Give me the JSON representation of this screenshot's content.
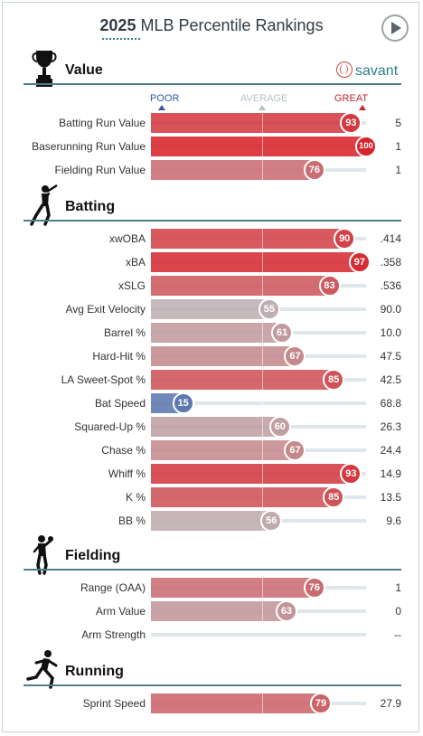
{
  "header": {
    "year": "2025",
    "title": "MLB Percentile Rankings",
    "play_icon": "play-icon"
  },
  "brand": {
    "label": "savant",
    "icon": "baseball-icon"
  },
  "scale": {
    "poor": "POOR",
    "average": "AVERAGE",
    "great": "GREAT"
  },
  "colors": {
    "accent": "#2e7d8c",
    "great": "#d8232a",
    "poor": "#325aa8",
    "average": "#b9bbbc"
  },
  "sections": {
    "value": {
      "title": "Value",
      "icon": "trophy-icon",
      "rows": [
        {
          "label": "Batting Run Value",
          "pct": 93,
          "value": "5"
        },
        {
          "label": "Baserunning Run Value",
          "pct": 100,
          "value": "1"
        },
        {
          "label": "Fielding Run Value",
          "pct": 76,
          "value": "1"
        }
      ]
    },
    "batting": {
      "title": "Batting",
      "icon": "batter-icon",
      "rows": [
        {
          "label": "xwOBA",
          "pct": 90,
          "value": ".414"
        },
        {
          "label": "xBA",
          "pct": 97,
          "value": ".358"
        },
        {
          "label": "xSLG",
          "pct": 83,
          "value": ".536"
        },
        {
          "label": "Avg Exit Velocity",
          "pct": 55,
          "value": "90.0"
        },
        {
          "label": "Barrel %",
          "pct": 61,
          "value": "10.0"
        },
        {
          "label": "Hard-Hit %",
          "pct": 67,
          "value": "47.5"
        },
        {
          "label": "LA Sweet-Spot %",
          "pct": 85,
          "value": "42.5"
        },
        {
          "label": "Bat Speed",
          "pct": 15,
          "value": "68.8"
        },
        {
          "label": "Squared-Up %",
          "pct": 60,
          "value": "26.3"
        },
        {
          "label": "Chase %",
          "pct": 67,
          "value": "24.4"
        },
        {
          "label": "Whiff %",
          "pct": 93,
          "value": "14.9"
        },
        {
          "label": "K %",
          "pct": 85,
          "value": "13.5"
        },
        {
          "label": "BB %",
          "pct": 56,
          "value": "9.6"
        }
      ]
    },
    "fielding": {
      "title": "Fielding",
      "icon": "fielder-icon",
      "rows": [
        {
          "label": "Range (OAA)",
          "pct": 76,
          "value": "1"
        },
        {
          "label": "Arm Value",
          "pct": 63,
          "value": "0"
        },
        {
          "label": "Arm Strength",
          "pct": null,
          "value": "--"
        }
      ]
    },
    "running": {
      "title": "Running",
      "icon": "runner-icon",
      "rows": [
        {
          "label": "Sprint Speed",
          "pct": 79,
          "value": "27.9"
        }
      ]
    }
  }
}
